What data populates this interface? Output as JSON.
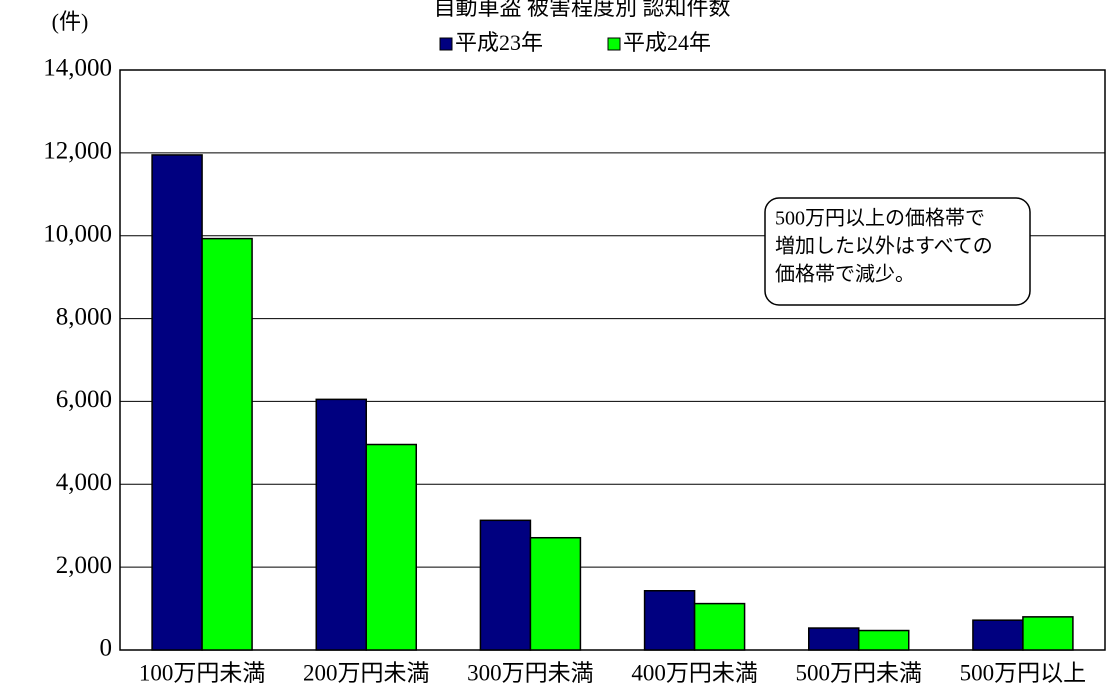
{
  "chart_data": {
    "type": "bar",
    "title": "自動車盗 被害程度別 認知件数",
    "y_label": "(件)",
    "annotation": [
      "500万円以上の価格帯で",
      "増加した以外はすべての",
      "価格帯で減少。"
    ],
    "categories": [
      "100万円未満",
      "200万円未満",
      "300万円未満",
      "400万円未満",
      "500万円未満",
      "500万円以上"
    ],
    "series": [
      {
        "name": "平成23年",
        "color": "#000080",
        "values": [
          11950,
          6050,
          3130,
          1430,
          530,
          720
        ]
      },
      {
        "name": "平成24年",
        "color": "#00ff00",
        "values": [
          9930,
          4960,
          2710,
          1120,
          470,
          800
        ]
      }
    ],
    "ylim": [
      0,
      14000
    ],
    "yticks": [
      0,
      {
        "value": 2000,
        "label": "2,000"
      },
      {
        "value": 4000,
        "label": "4,000"
      },
      {
        "value": 6000,
        "label": "6,000"
      },
      {
        "value": 8000,
        "label": "8,000"
      },
      {
        "value": 10000,
        "label": "10,000"
      },
      {
        "value": 12000,
        "label": "12,000"
      },
      {
        "value": 14000,
        "label": "14,000"
      }
    ],
    "grid": true
  }
}
